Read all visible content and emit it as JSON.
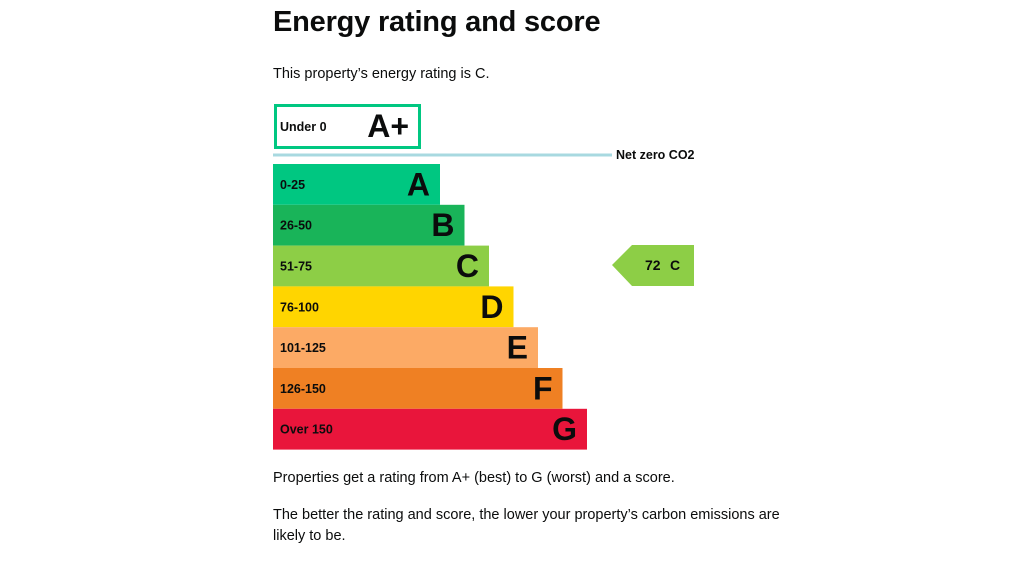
{
  "page": {
    "heading": "Energy rating and score",
    "intro": "This property’s energy rating is C.",
    "paragraph_1": "Properties get a rating from A+ (best) to G (worst) and a score.",
    "paragraph_2": "The better the rating and score, the lower your property’s carbon emissions are likely to be."
  },
  "rating_chart": {
    "top_band": {
      "range": "Under 0",
      "letter": "A+",
      "border_color": "#00c781"
    },
    "net_zero": {
      "label": "Net zero CO2",
      "line_color": "#a8d9e0"
    },
    "bands": [
      {
        "range": "0-25",
        "letter": "A",
        "color": "#00c781"
      },
      {
        "range": "26-50",
        "letter": "B",
        "color": "#19b459"
      },
      {
        "range": "51-75",
        "letter": "C",
        "color": "#8dce46"
      },
      {
        "range": "76-100",
        "letter": "D",
        "color": "#ffd500"
      },
      {
        "range": "101-125",
        "letter": "E",
        "color": "#fcaa65"
      },
      {
        "range": "126-150",
        "letter": "F",
        "color": "#ef8023"
      },
      {
        "range": "Over 150",
        "letter": "G",
        "color": "#e9153b"
      }
    ],
    "current": {
      "score": "72",
      "letter": "C",
      "band_index": 2,
      "color": "#8dce46"
    }
  }
}
